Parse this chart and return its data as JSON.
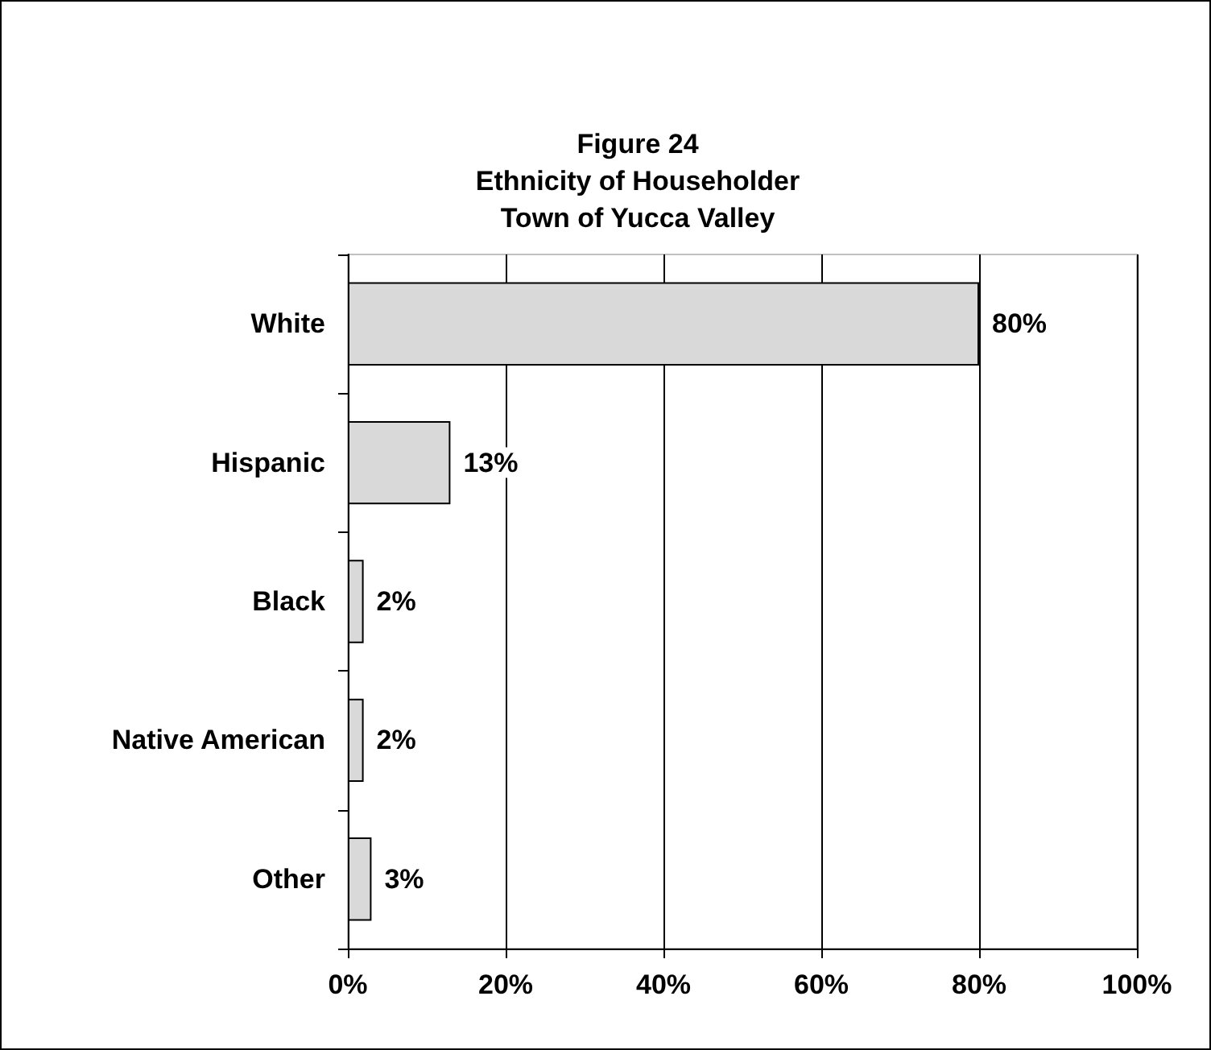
{
  "chart_data": {
    "type": "bar",
    "orientation": "horizontal",
    "title": "Figure 24\nEthnicity of Householder\nTown of Yucca Valley",
    "categories": [
      "White",
      "Hispanic",
      "Black",
      "Native American",
      "Other"
    ],
    "values": [
      80,
      13,
      2,
      2,
      3
    ],
    "value_labels": [
      "80%",
      "13%",
      "2%",
      "2%",
      "3%"
    ],
    "color": "#d9d9d9",
    "xlim": [
      0,
      100
    ],
    "xticks": [
      {
        "value": 0,
        "label": "0%"
      },
      {
        "value": 20,
        "label": "20%"
      },
      {
        "value": 40,
        "label": "40%"
      },
      {
        "value": 60,
        "label": "60%"
      },
      {
        "value": 80,
        "label": "80%"
      },
      {
        "value": 100,
        "label": "100%"
      }
    ],
    "grid": "x"
  }
}
